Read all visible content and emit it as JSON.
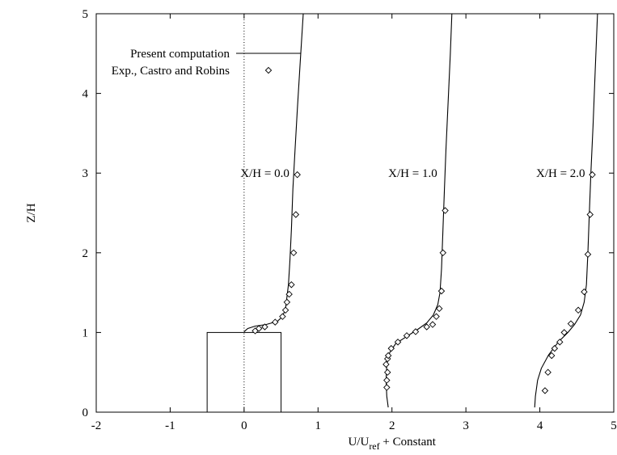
{
  "chart_data": {
    "type": "line",
    "title": "",
    "xlabel": "U/U",
    "xlabel_sub": "ref",
    "xlabel_suffix": " + Constant",
    "ylabel": "Z/H",
    "xlim": [
      -2,
      5
    ],
    "ylim": [
      0,
      5
    ],
    "xticks": [
      "-2",
      "-1",
      "0",
      "1",
      "2",
      "3",
      "4",
      "5"
    ],
    "yticks": [
      "0",
      "1",
      "2",
      "3",
      "4",
      "5"
    ],
    "grid": false,
    "legend_position": "top-left",
    "legend": [
      {
        "label": "Present computation",
        "style": "line"
      },
      {
        "label": "Exp., Castro and Robins",
        "style": "diamond"
      }
    ],
    "annotations": [
      {
        "text": "X/H = 0.0",
        "x": 0.7,
        "y": 3.0
      },
      {
        "text": "X/H = 1.0",
        "x": 2.7,
        "y": 3.0
      },
      {
        "text": "X/H = 2.0",
        "x": 4.7,
        "y": 3.0
      }
    ],
    "reference_line": {
      "x": 0,
      "style": "dotted"
    },
    "obstacle": {
      "x": [
        -0.5,
        0.5
      ],
      "y": [
        0,
        1
      ]
    },
    "series": [
      {
        "name": "Present computation",
        "style": "line",
        "segments": [
          [
            [
              0.0,
              1.01
            ],
            [
              0.05,
              1.05
            ],
            [
              0.15,
              1.08
            ],
            [
              0.3,
              1.1
            ],
            [
              0.45,
              1.14
            ],
            [
              0.52,
              1.2
            ],
            [
              0.56,
              1.3
            ],
            [
              0.58,
              1.45
            ],
            [
              0.6,
              1.6
            ],
            [
              0.62,
              1.9
            ],
            [
              0.64,
              2.3
            ],
            [
              0.66,
              2.8
            ],
            [
              0.69,
              3.3
            ],
            [
              0.72,
              3.8
            ],
            [
              0.76,
              4.4
            ],
            [
              0.8,
              5.0
            ]
          ],
          [
            [
              1.95,
              0.06
            ],
            [
              1.93,
              0.2
            ],
            [
              1.92,
              0.4
            ],
            [
              1.93,
              0.6
            ],
            [
              1.97,
              0.75
            ],
            [
              2.05,
              0.86
            ],
            [
              2.2,
              0.95
            ],
            [
              2.35,
              1.04
            ],
            [
              2.47,
              1.12
            ],
            [
              2.56,
              1.22
            ],
            [
              2.62,
              1.35
            ],
            [
              2.65,
              1.5
            ],
            [
              2.67,
              1.8
            ],
            [
              2.69,
              2.3
            ],
            [
              2.71,
              2.8
            ],
            [
              2.73,
              3.3
            ],
            [
              2.76,
              3.9
            ],
            [
              2.79,
              4.5
            ],
            [
              2.81,
              5.0
            ]
          ],
          [
            [
              3.93,
              0.06
            ],
            [
              3.94,
              0.2
            ],
            [
              3.97,
              0.4
            ],
            [
              4.02,
              0.55
            ],
            [
              4.12,
              0.72
            ],
            [
              4.25,
              0.88
            ],
            [
              4.38,
              1.0
            ],
            [
              4.47,
              1.1
            ],
            [
              4.55,
              1.22
            ],
            [
              4.6,
              1.38
            ],
            [
              4.63,
              1.6
            ],
            [
              4.65,
              2.0
            ],
            [
              4.67,
              2.5
            ],
            [
              4.69,
              3.0
            ],
            [
              4.72,
              3.6
            ],
            [
              4.75,
              4.3
            ],
            [
              4.78,
              5.0
            ]
          ]
        ]
      },
      {
        "name": "Exp., Castro and Robins",
        "style": "diamond",
        "points": [
          [
            0.15,
            1.02
          ],
          [
            0.2,
            1.05
          ],
          [
            0.28,
            1.07
          ],
          [
            0.42,
            1.13
          ],
          [
            0.52,
            1.2
          ],
          [
            0.56,
            1.28
          ],
          [
            0.58,
            1.38
          ],
          [
            0.61,
            1.48
          ],
          [
            0.64,
            1.6
          ],
          [
            0.67,
            2.0
          ],
          [
            0.7,
            2.48
          ],
          [
            0.72,
            2.98
          ],
          [
            1.93,
            0.31
          ],
          [
            1.93,
            0.4
          ],
          [
            1.94,
            0.5
          ],
          [
            1.92,
            0.6
          ],
          [
            1.94,
            0.67
          ],
          [
            1.95,
            0.71
          ],
          [
            1.99,
            0.8
          ],
          [
            2.08,
            0.88
          ],
          [
            2.2,
            0.96
          ],
          [
            2.32,
            1.01
          ],
          [
            2.47,
            1.07
          ],
          [
            2.55,
            1.1
          ],
          [
            2.6,
            1.2
          ],
          [
            2.64,
            1.3
          ],
          [
            2.67,
            1.52
          ],
          [
            2.69,
            2.0
          ],
          [
            2.72,
            2.53
          ],
          [
            4.07,
            0.27
          ],
          [
            4.11,
            0.5
          ],
          [
            4.16,
            0.71
          ],
          [
            4.2,
            0.8
          ],
          [
            4.27,
            0.88
          ],
          [
            4.33,
            1.0
          ],
          [
            4.42,
            1.11
          ],
          [
            4.52,
            1.28
          ],
          [
            4.6,
            1.51
          ],
          [
            4.65,
            1.98
          ],
          [
            4.68,
            2.48
          ],
          [
            4.71,
            2.98
          ]
        ]
      }
    ]
  }
}
